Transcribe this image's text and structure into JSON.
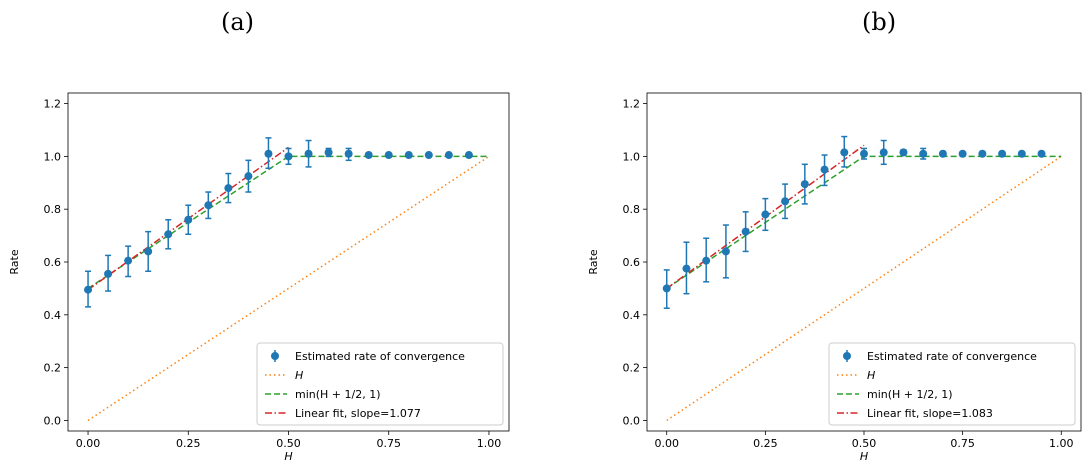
{
  "panels": [
    {
      "label": "(a)"
    },
    {
      "label": "(b)"
    }
  ],
  "colors": {
    "estimate": "#1f77b4",
    "h_line": "#ff7f0e",
    "min_line": "#2ca02c",
    "fit_line": "#d62728"
  },
  "chart_data": [
    {
      "type": "scatter",
      "title": "(a)",
      "xlabel": "H",
      "ylabel": "Rate",
      "xlim": [
        -0.05,
        1.05
      ],
      "ylim": [
        -0.04,
        1.24
      ],
      "xticks": [
        0.0,
        0.25,
        0.5,
        0.75,
        1.0
      ],
      "xtick_labels": [
        "0.00",
        "0.25",
        "0.50",
        "0.75",
        "1.00"
      ],
      "yticks": [
        0.0,
        0.2,
        0.4,
        0.6,
        0.8,
        1.0,
        1.2
      ],
      "ytick_labels": [
        "0.0",
        "0.2",
        "0.4",
        "0.6",
        "0.8",
        "1.0",
        "1.2"
      ],
      "grid": false,
      "legend_position": "lower-right",
      "legend": [
        {
          "label": "Estimated rate of convergence",
          "style": "errorbar"
        },
        {
          "label": "H",
          "style": "dotted"
        },
        {
          "label": "min(H + 1/2, 1)",
          "style": "dashed"
        },
        {
          "label": "Linear fit, slope=1.077",
          "style": "dashdot"
        }
      ],
      "series": [
        {
          "name": "Estimated rate of convergence",
          "x": [
            0.0,
            0.05,
            0.1,
            0.15,
            0.2,
            0.25,
            0.3,
            0.35,
            0.4,
            0.45,
            0.5,
            0.55,
            0.6,
            0.65,
            0.7,
            0.75,
            0.8,
            0.85,
            0.9,
            0.95
          ],
          "y": [
            0.495,
            0.555,
            0.605,
            0.64,
            0.705,
            0.76,
            0.815,
            0.88,
            0.925,
            1.01,
            1.0,
            1.01,
            1.015,
            1.01,
            1.005,
            1.005,
            1.005,
            1.005,
            1.005,
            1.005
          ],
          "err_low": [
            0.065,
            0.065,
            0.06,
            0.075,
            0.055,
            0.055,
            0.05,
            0.055,
            0.06,
            0.055,
            0.03,
            0.05,
            0.015,
            0.025,
            0.008,
            0.006,
            0.006,
            0.006,
            0.006,
            0.006
          ],
          "err_high": [
            0.07,
            0.07,
            0.055,
            0.075,
            0.055,
            0.055,
            0.05,
            0.055,
            0.06,
            0.06,
            0.03,
            0.05,
            0.015,
            0.02,
            0.008,
            0.006,
            0.006,
            0.006,
            0.006,
            0.006
          ]
        },
        {
          "name": "H",
          "x": [
            0.0,
            1.0
          ],
          "y": [
            0.0,
            1.0
          ]
        },
        {
          "name": "min(H + 1/2, 1)",
          "x": [
            0.0,
            0.5,
            1.0
          ],
          "y": [
            0.5,
            1.0,
            1.0
          ]
        },
        {
          "name": "Linear fit, slope=1.077",
          "x": [
            0.0,
            0.5
          ],
          "y": [
            0.495,
            1.034
          ]
        }
      ]
    },
    {
      "type": "scatter",
      "title": "(b)",
      "xlabel": "H",
      "ylabel": "Rate",
      "xlim": [
        -0.05,
        1.05
      ],
      "ylim": [
        -0.04,
        1.24
      ],
      "xticks": [
        0.0,
        0.25,
        0.5,
        0.75,
        1.0
      ],
      "xtick_labels": [
        "0.00",
        "0.25",
        "0.50",
        "0.75",
        "1.00"
      ],
      "yticks": [
        0.0,
        0.2,
        0.4,
        0.6,
        0.8,
        1.0,
        1.2
      ],
      "ytick_labels": [
        "0.0",
        "0.2",
        "0.4",
        "0.6",
        "0.8",
        "1.0",
        "1.2"
      ],
      "grid": false,
      "legend_position": "lower-right",
      "legend": [
        {
          "label": "Estimated rate of convergence",
          "style": "errorbar"
        },
        {
          "label": "H",
          "style": "dotted"
        },
        {
          "label": "min(H + 1/2, 1)",
          "style": "dashed"
        },
        {
          "label": "Linear fit, slope=1.083",
          "style": "dashdot"
        }
      ],
      "series": [
        {
          "name": "Estimated rate of convergence",
          "x": [
            0.0,
            0.05,
            0.1,
            0.15,
            0.2,
            0.25,
            0.3,
            0.35,
            0.4,
            0.45,
            0.5,
            0.55,
            0.6,
            0.65,
            0.7,
            0.75,
            0.8,
            0.85,
            0.9,
            0.95
          ],
          "y": [
            0.5,
            0.575,
            0.605,
            0.64,
            0.715,
            0.78,
            0.83,
            0.895,
            0.95,
            1.015,
            1.01,
            1.015,
            1.015,
            1.01,
            1.01,
            1.01,
            1.01,
            1.01,
            1.01,
            1.01
          ],
          "err_low": [
            0.075,
            0.095,
            0.08,
            0.1,
            0.075,
            0.06,
            0.065,
            0.075,
            0.06,
            0.055,
            0.02,
            0.045,
            0.01,
            0.02,
            0.008,
            0.006,
            0.006,
            0.006,
            0.006,
            0.006
          ],
          "err_high": [
            0.07,
            0.1,
            0.085,
            0.1,
            0.075,
            0.06,
            0.065,
            0.075,
            0.055,
            0.06,
            0.02,
            0.045,
            0.01,
            0.02,
            0.008,
            0.006,
            0.006,
            0.006,
            0.006,
            0.006
          ]
        },
        {
          "name": "H",
          "x": [
            0.0,
            1.0
          ],
          "y": [
            0.0,
            1.0
          ]
        },
        {
          "name": "min(H + 1/2, 1)",
          "x": [
            0.0,
            0.5,
            1.0
          ],
          "y": [
            0.5,
            1.0,
            1.0
          ]
        },
        {
          "name": "Linear fit, slope=1.083",
          "x": [
            0.0,
            0.5
          ],
          "y": [
            0.5,
            1.042
          ]
        }
      ]
    }
  ]
}
